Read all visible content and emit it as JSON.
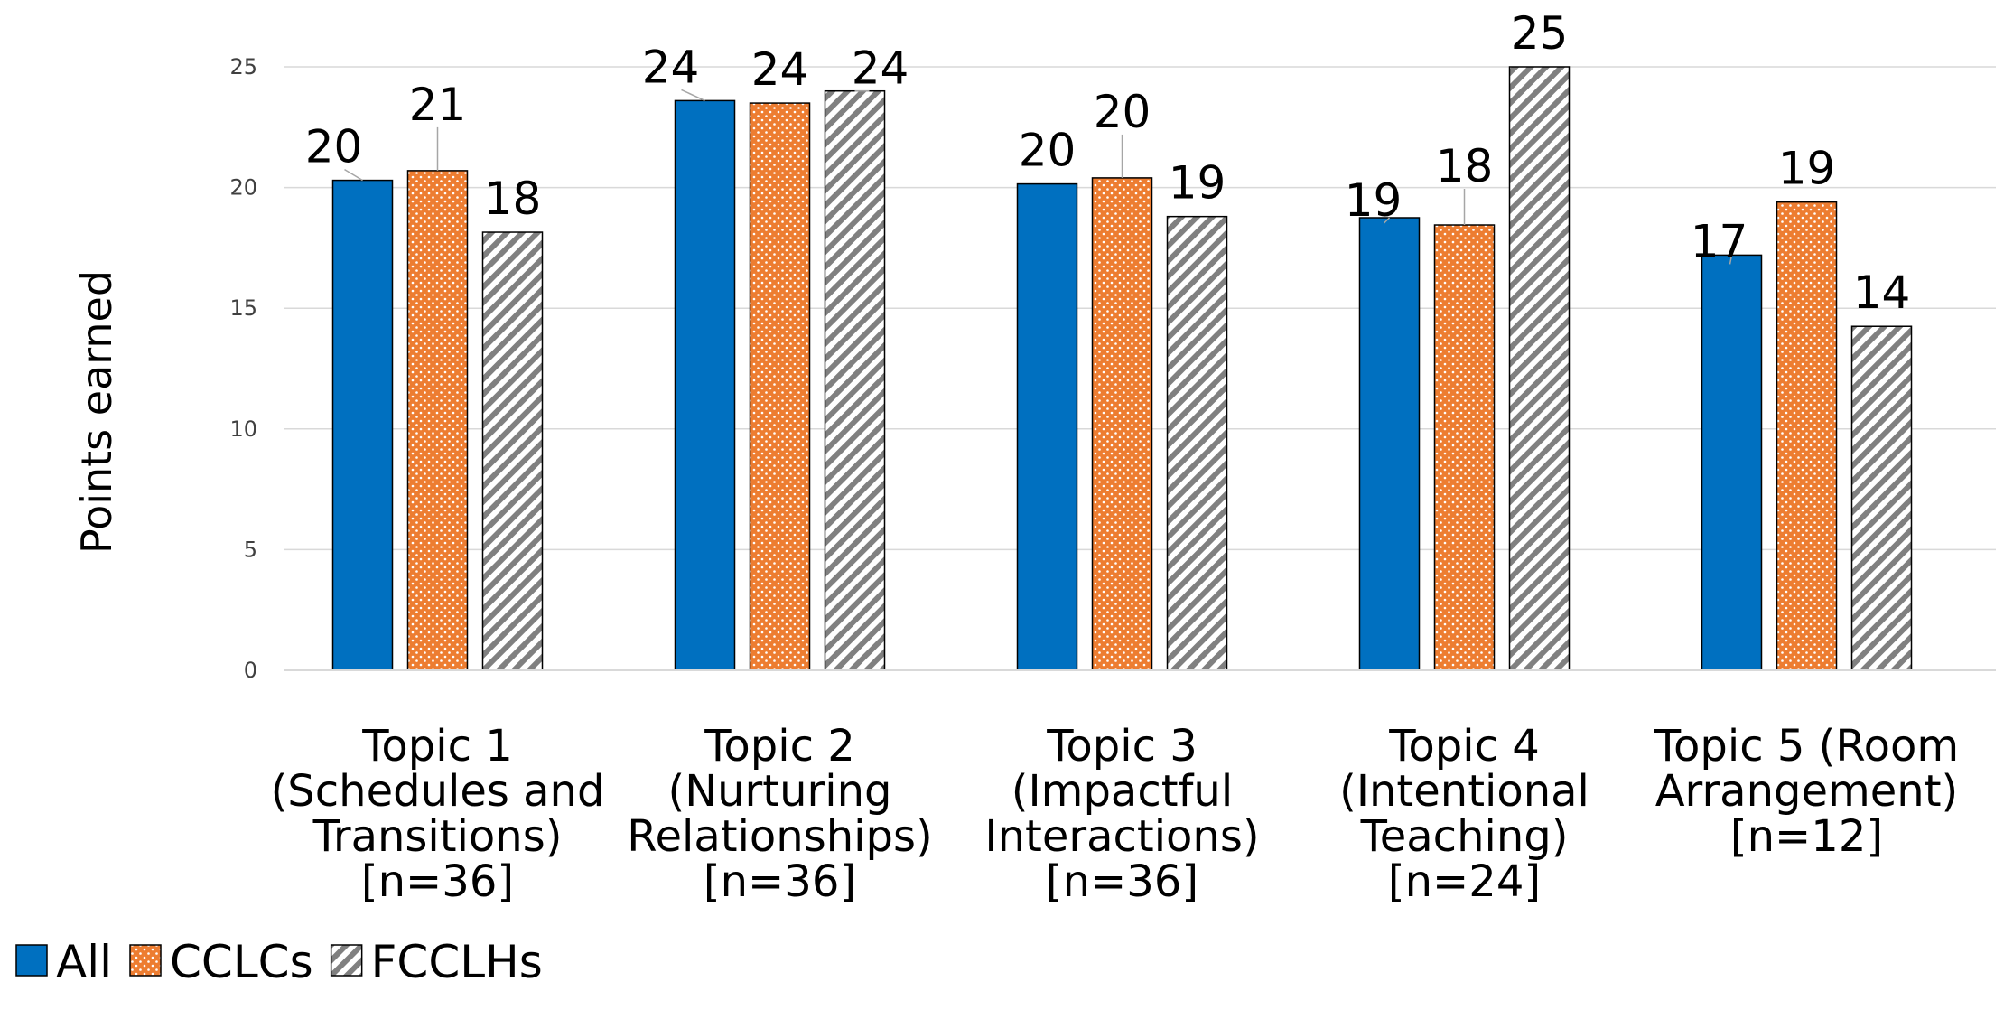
{
  "chart_data": {
    "type": "bar",
    "title": "",
    "xlabel": "",
    "ylabel": "Points earned",
    "ylim": [
      0,
      25
    ],
    "yticks": [
      0,
      5,
      10,
      15,
      20,
      25
    ],
    "grid": true,
    "legend_position": "bottom-left",
    "categories": [
      [
        "Topic 1",
        "(Schedules and",
        "Transitions)",
        "[n=36]"
      ],
      [
        "Topic 2",
        "(Nurturing",
        "Relationships)",
        "[n=36]"
      ],
      [
        "Topic 3",
        "(Impactful",
        "Interactions)",
        "[n=36]"
      ],
      [
        "Topic 4",
        "(Intentional",
        "Teaching)",
        "[n=24]"
      ],
      [
        "Topic 5 (Room",
        "Arrangement)",
        "[n=12]"
      ]
    ],
    "series": [
      {
        "name": "All",
        "color": "#0070C0",
        "pattern": "solid",
        "values": [
          20.3,
          23.6,
          20.15,
          18.75,
          17.2
        ],
        "labels": [
          "20",
          "24",
          "20",
          "19",
          "17"
        ]
      },
      {
        "name": "CCLCs",
        "color": "#ED7D31",
        "pattern": "dots",
        "values": [
          20.7,
          23.5,
          20.4,
          18.45,
          19.4
        ],
        "labels": [
          "21",
          "24",
          "20",
          "18",
          "19"
        ]
      },
      {
        "name": "FCCLHs",
        "color": "#A6A6A6",
        "pattern": "diagonal-stripes",
        "values": [
          18.15,
          24.0,
          18.8,
          25.0,
          14.25
        ],
        "labels": [
          "18",
          "24",
          "19",
          "25",
          "14"
        ]
      }
    ]
  }
}
